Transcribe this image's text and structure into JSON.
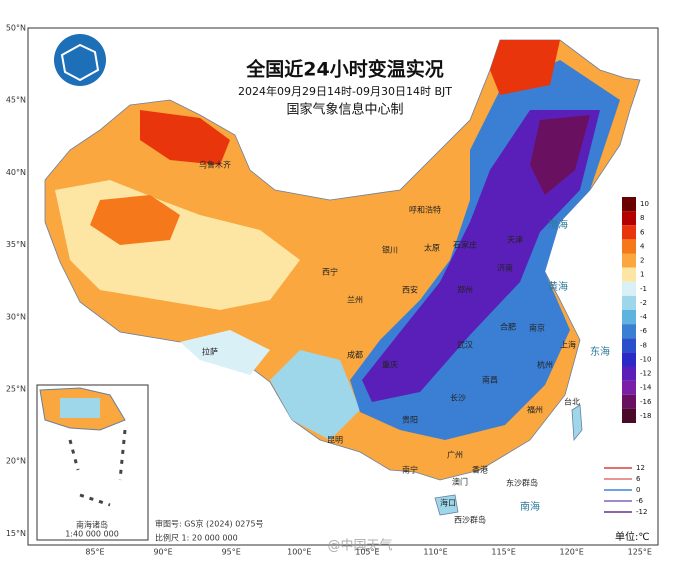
{
  "header": {
    "title": "全国近24小时变温实况",
    "subtitle": "2024年09月29日14时-09月30日14时 BJT",
    "producer": "国家气象信息中心制"
  },
  "lat_labels": [
    "50°N",
    "45°N",
    "40°N",
    "35°N",
    "30°N",
    "25°N",
    "20°N",
    "15°N"
  ],
  "lon_labels": [
    "85°E",
    "90°E",
    "95°E",
    "100°E",
    "105°E",
    "110°E",
    "115°E",
    "120°E",
    "125°E"
  ],
  "legend": {
    "unit": "单位:℃",
    "fill_levels": [
      {
        "value": 10,
        "color": "#6b0000"
      },
      {
        "value": 8,
        "color": "#b30000"
      },
      {
        "value": 6,
        "color": "#e8350b"
      },
      {
        "value": 4,
        "color": "#f5781a"
      },
      {
        "value": 2,
        "color": "#f9a73e"
      },
      {
        "value": 1,
        "color": "#fde6a4"
      },
      {
        "value": -1,
        "color": "#d9f0f6"
      },
      {
        "value": -2,
        "color": "#9fd7ea"
      },
      {
        "value": -4,
        "color": "#5fb3e0"
      },
      {
        "value": -6,
        "color": "#3b7fd4"
      },
      {
        "value": -8,
        "color": "#2b4fcc"
      },
      {
        "value": -10,
        "color": "#2a2bc4"
      },
      {
        "value": -12,
        "color": "#5a1fb8"
      },
      {
        "value": -14,
        "color": "#7a1fa8"
      },
      {
        "value": -16,
        "color": "#6a1060"
      },
      {
        "value": -18,
        "color": "#4a0a2a"
      }
    ],
    "line_levels": [
      {
        "value": 12,
        "color": "#d94040"
      },
      {
        "value": 6,
        "color": "#e07070"
      },
      {
        "value": 0,
        "color": "#4080e0"
      },
      {
        "value": -6,
        "color": "#8060c0"
      },
      {
        "value": -12,
        "color": "#6a3090"
      }
    ]
  },
  "cities": [
    "乌鲁木齐",
    "呼和浩特",
    "银川",
    "西宁",
    "兰州",
    "太原",
    "石家庄",
    "天津",
    "济南",
    "郑州",
    "西安",
    "成都",
    "重庆",
    "武汉",
    "合肥",
    "南京",
    "上海",
    "杭州",
    "长沙",
    "南昌",
    "福州",
    "贵阳",
    "昆明",
    "南宁",
    "广州",
    "香港",
    "澳门",
    "海口",
    "台北",
    "拉萨",
    "东沙群岛",
    "西沙群岛"
  ],
  "seas": [
    "渤海",
    "黄海",
    "东海",
    "南海"
  ],
  "footer": {
    "approval": "审图号: GS京 (2024) 0275号",
    "scale": "比例尺 1: 20 000 000",
    "inset_scale": "1:40 000 000",
    "inset_title": "南海诸岛",
    "watermark": "@中国天气"
  }
}
